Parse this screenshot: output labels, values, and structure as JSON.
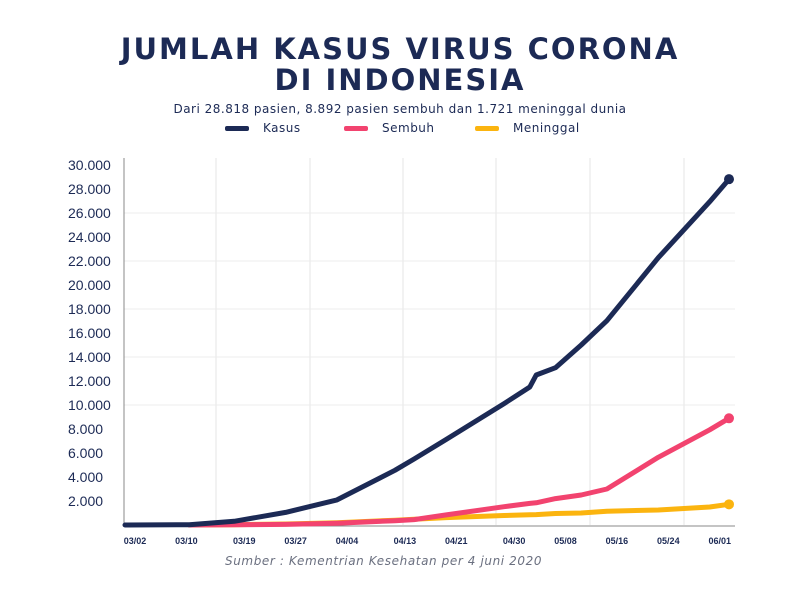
{
  "chart_data": {
    "type": "line",
    "title": [
      "JUMLAH KASUS VIRUS CORONA",
      "DI INDONESIA"
    ],
    "subtitle": "Dari 28.818 pasien, 8.892 pasien sembuh dan 1.721 meninggal dunia",
    "source": "Sumber : Kementrian Kesehatan per 4 juni 2020",
    "ylim": [
      0,
      30000
    ],
    "yticks": [
      "2.000",
      "4.000",
      "6.000",
      "8.000",
      "10.000",
      "12.000",
      "14.000",
      "16.000",
      "18.000",
      "20.000",
      "22.000",
      "24.000",
      "26.000",
      "28.000",
      "30.000"
    ],
    "ytick_values": [
      2000,
      4000,
      6000,
      8000,
      10000,
      12000,
      14000,
      16000,
      18000,
      20000,
      22000,
      24000,
      26000,
      28000,
      30000
    ],
    "xticks": [
      "03/02",
      "03/10",
      "03/19",
      "03/27",
      "04/04",
      "04/13",
      "04/21",
      "04/30",
      "05/08",
      "05/16",
      "05/24",
      "06/01"
    ],
    "xtick_days": [
      0,
      8,
      17,
      25,
      33,
      42,
      50,
      59,
      67,
      75,
      83,
      91
    ],
    "x_days": [
      0,
      8,
      10,
      17,
      25,
      33,
      42,
      45,
      50,
      59,
      63,
      64,
      67,
      71,
      75,
      83,
      91,
      94
    ],
    "series": [
      {
        "name": "Kasus",
        "color": "#1c2a55",
        "values": [
          2,
          19,
          27,
          309,
          1046,
          2092,
          4557,
          5500,
          7135,
          10118,
          11500,
          12500,
          13112,
          15000,
          17025,
          22271,
          26940,
          28818
        ]
      },
      {
        "name": "Sembuh",
        "color": "#f2436f",
        "values": [
          null,
          null,
          2,
          15,
          46,
          150,
          359,
          450,
          842,
          1522,
          1800,
          1850,
          2200,
          2500,
          3000,
          5642,
          7935,
          8892
        ]
      },
      {
        "name": "Meninggal",
        "color": "#fbb40f",
        "values": [
          null,
          null,
          2,
          25,
          87,
          191,
          399,
          480,
          616,
          792,
          850,
          870,
          959,
          1000,
          1148,
          1250,
          1500,
          1721
        ]
      }
    ]
  }
}
